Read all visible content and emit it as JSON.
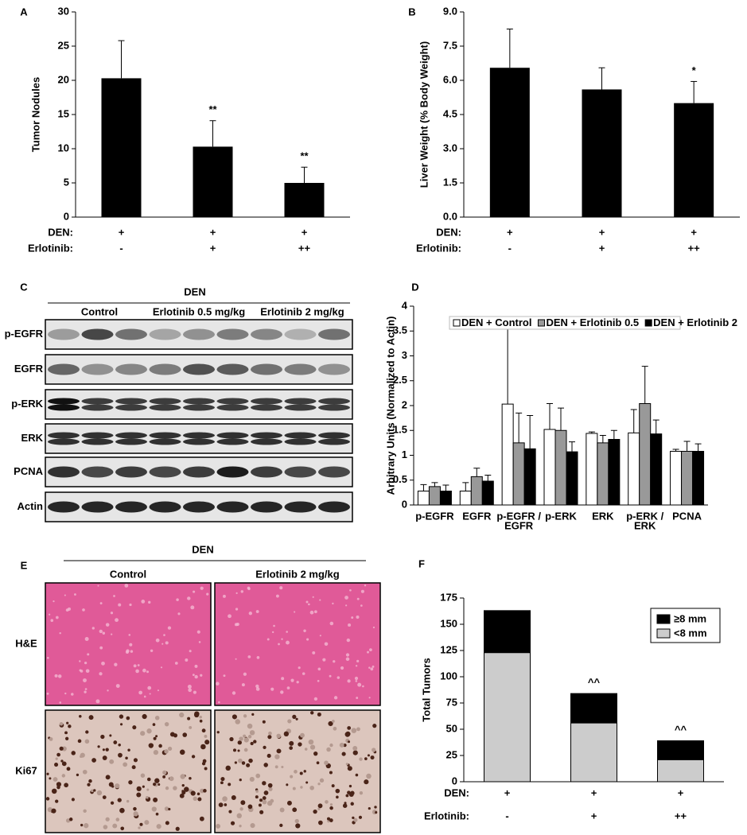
{
  "chart_data": [
    {
      "type": "bar",
      "panel": "A",
      "ylabel": "Tumor Nodules",
      "values": [
        20.3,
        10.3,
        5.0
      ],
      "errors": [
        5.5,
        3.8,
        2.3
      ],
      "color": "#000000",
      "value_annotations": [
        null,
        "**",
        "**"
      ],
      "conditions": [
        {
          "name": "DEN:",
          "values": [
            "+",
            "+",
            "+"
          ]
        },
        {
          "name": "Erlotinib:",
          "values": [
            "-",
            "+",
            "++"
          ]
        }
      ],
      "ylim": [
        0,
        30
      ],
      "yticks": [
        0,
        5,
        10,
        15,
        20,
        25,
        30
      ]
    },
    {
      "type": "bar",
      "panel": "B",
      "ylabel": "Liver Weight (% Body Weight)",
      "values": [
        6.55,
        5.6,
        5.0
      ],
      "errors": [
        1.7,
        0.95,
        0.95
      ],
      "color": "#000000",
      "value_annotations": [
        null,
        null,
        "*"
      ],
      "conditions": [
        {
          "name": "DEN:",
          "values": [
            "+",
            "+",
            "+"
          ]
        },
        {
          "name": "Erlotinib:",
          "values": [
            "-",
            "+",
            "++"
          ]
        }
      ],
      "ylim": [
        0,
        9
      ],
      "yticks": [
        {
          "value": 0,
          "label": "0.0"
        },
        {
          "value": 1.5,
          "label": "1.5"
        },
        {
          "value": 3,
          "label": "3.0"
        },
        {
          "value": 4.5,
          "label": "4.5"
        },
        {
          "value": 6,
          "label": "6.0"
        },
        {
          "value": 7.5,
          "label": "7.5"
        },
        {
          "value": 9,
          "label": "9.0"
        }
      ]
    },
    {
      "type": "bar",
      "panel": "D",
      "ylabel": "Arbitrary Units (Normalized to Actin)",
      "categories": [
        "p-EGFR",
        "EGFR",
        [
          "p-EGFR /",
          "EGFR"
        ],
        "p-ERK",
        "ERK",
        [
          "p-ERK /",
          "ERK"
        ],
        "PCNA"
      ],
      "series": [
        {
          "name": "DEN + Control",
          "color": "#ffffff",
          "values": [
            0.28,
            0.28,
            2.03,
            1.52,
            1.44,
            1.45,
            1.08
          ],
          "errors": [
            0.13,
            0.17,
            1.52,
            0.52,
            0.03,
            0.47,
            0.04
          ]
        },
        {
          "name": "DEN + Erlotinib 0.5",
          "color": "#999999",
          "values": [
            0.37,
            0.57,
            1.25,
            1.5,
            1.25,
            2.04,
            1.08
          ],
          "errors": [
            0.08,
            0.17,
            0.6,
            0.45,
            0.15,
            0.75,
            0.2
          ]
        },
        {
          "name": "DEN + Erlotinib 2",
          "color": "#000000",
          "values": [
            0.28,
            0.48,
            1.13,
            1.07,
            1.32,
            1.43,
            1.08
          ],
          "errors": [
            0.12,
            0.12,
            0.67,
            0.2,
            0.18,
            0.28,
            0.15
          ]
        }
      ],
      "ylim": [
        0,
        4
      ],
      "yticks": [
        0,
        0.5,
        1,
        1.5,
        2,
        2.5,
        3,
        3.5,
        4
      ]
    },
    {
      "type": "bar",
      "panel": "F",
      "ylabel": "Total Tumors",
      "stacked": true,
      "series": [
        {
          "name": "<8 mm",
          "color": "#cccccc",
          "values": [
            123,
            56,
            21
          ]
        },
        {
          "name": "≥8 mm",
          "color": "#000000",
          "values": [
            40,
            28,
            18
          ]
        }
      ],
      "value_annotations": [
        null,
        "^^",
        "^^"
      ],
      "conditions": [
        {
          "name": "DEN:",
          "values": [
            "+",
            "+",
            "+"
          ]
        },
        {
          "name": "Erlotinib:",
          "values": [
            "-",
            "+",
            "++"
          ]
        }
      ],
      "ylim": [
        0,
        175
      ],
      "yticks": [
        0,
        25,
        50,
        75,
        100,
        125,
        150,
        175
      ]
    }
  ],
  "blot": {
    "panel": "C",
    "title": "DEN",
    "groups": [
      "Control",
      "Erlotinib 0.5 mg/kg",
      "Erlotinib 2 mg/kg"
    ],
    "rows": [
      "p-EGFR",
      "EGFR",
      "p-ERK",
      "ERK",
      "PCNA",
      "Actin"
    ]
  },
  "histology": {
    "panel": "E",
    "title": "DEN",
    "groups": [
      "Control",
      "Erlotinib 2 mg/kg"
    ],
    "rows": [
      "H&E",
      "Ki67"
    ]
  }
}
